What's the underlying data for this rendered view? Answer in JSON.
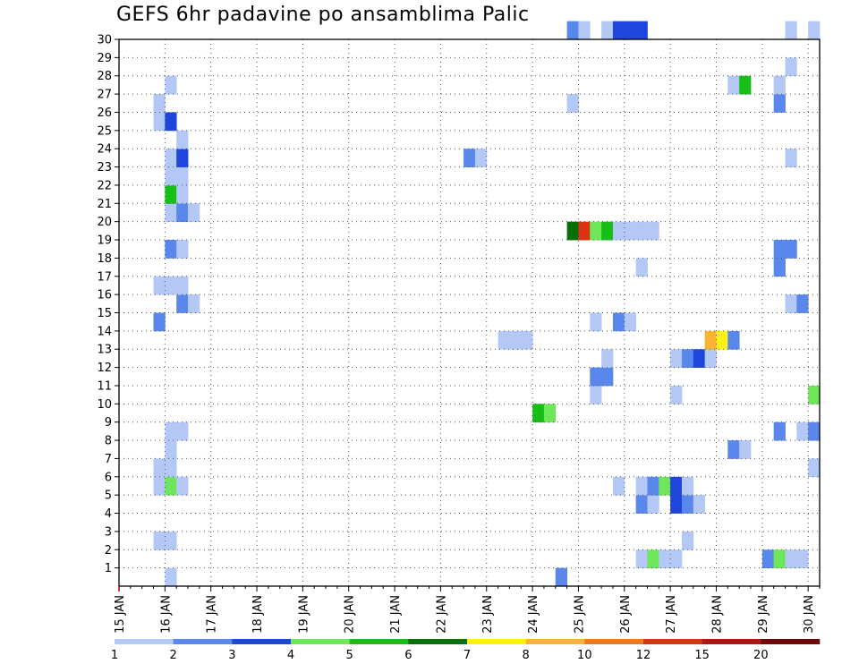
{
  "chart_data": {
    "type": "heatmap",
    "title": "GEFS 6hr padavine po ansamblima Palic",
    "x_tick_labels": [
      "15 JAN",
      "16 JAN",
      "17 JAN",
      "18 JAN",
      "19 JAN",
      "20 JAN",
      "21 JAN",
      "22 JAN",
      "23 JAN",
      "24 JAN",
      "25 JAN",
      "26 JAN",
      "27 JAN",
      "28 JAN",
      "29 JAN",
      "30 JAN"
    ],
    "y_tick_labels": [
      "1",
      "2",
      "3",
      "4",
      "5",
      "6",
      "7",
      "8",
      "9",
      "10",
      "11",
      "12",
      "13",
      "14",
      "15",
      "16",
      "17",
      "18",
      "19",
      "20",
      "21",
      "22",
      "23",
      "24",
      "25",
      "26",
      "27",
      "28",
      "29",
      "30"
    ],
    "x_range_steps": [
      0,
      61
    ],
    "y_range_members": [
      0,
      30
    ],
    "grid": true,
    "colorbar": {
      "labels": [
        "1",
        "2",
        "3",
        "4",
        "5",
        "6",
        "7",
        "8",
        "10",
        "12",
        "15",
        "20"
      ],
      "colors": [
        "#b4c8f5",
        "#5a87eb",
        "#1e46dc",
        "#6ee65a",
        "#16be16",
        "#0a6e0a",
        "#fff014",
        "#fab432",
        "#fa7814",
        "#dc3214",
        "#b41414",
        "#6e0a0a"
      ]
    },
    "level_colors": {
      "1": "#b4c8f5",
      "2": "#5a87eb",
      "3": "#1e46dc",
      "4": "#6ee65a",
      "5": "#16be16",
      "6": "#0a6e0a",
      "7": "#fff014",
      "8": "#fab432",
      "9": "#fa7814",
      "10": "#dc3214"
    },
    "cells": [
      [
        4,
        0,
        1
      ],
      [
        38,
        0,
        2
      ],
      [
        45,
        1,
        1
      ],
      [
        46,
        1,
        4
      ],
      [
        47,
        1,
        1
      ],
      [
        48,
        1,
        1
      ],
      [
        56,
        1,
        2
      ],
      [
        57,
        1,
        4
      ],
      [
        58,
        1,
        1
      ],
      [
        59,
        1,
        1
      ],
      [
        3,
        2,
        1
      ],
      [
        4,
        2,
        1
      ],
      [
        49,
        2,
        1
      ],
      [
        45,
        4,
        2
      ],
      [
        46,
        4,
        1
      ],
      [
        48,
        4,
        3
      ],
      [
        49,
        4,
        2
      ],
      [
        50,
        4,
        1
      ],
      [
        3,
        5,
        1
      ],
      [
        4,
        5,
        4
      ],
      [
        5,
        5,
        1
      ],
      [
        43,
        5,
        1
      ],
      [
        45,
        5,
        1
      ],
      [
        46,
        5,
        2
      ],
      [
        47,
        5,
        4
      ],
      [
        48,
        5,
        3
      ],
      [
        49,
        5,
        1
      ],
      [
        3,
        6,
        1
      ],
      [
        4,
        6,
        1
      ],
      [
        60,
        6,
        1
      ],
      [
        4,
        7,
        1
      ],
      [
        53,
        7,
        2
      ],
      [
        54,
        7,
        1
      ],
      [
        4,
        8,
        1
      ],
      [
        5,
        8,
        1
      ],
      [
        57,
        8,
        2
      ],
      [
        59,
        8,
        1
      ],
      [
        60,
        8,
        2
      ],
      [
        36,
        9,
        5
      ],
      [
        37,
        9,
        4
      ],
      [
        41,
        10,
        1
      ],
      [
        48,
        10,
        1
      ],
      [
        60,
        10,
        4
      ],
      [
        41,
        11,
        2
      ],
      [
        42,
        11,
        2
      ],
      [
        42,
        12,
        1
      ],
      [
        48,
        12,
        1
      ],
      [
        49,
        12,
        2
      ],
      [
        50,
        12,
        3
      ],
      [
        51,
        12,
        1
      ],
      [
        33,
        13,
        1
      ],
      [
        34,
        13,
        1
      ],
      [
        35,
        13,
        1
      ],
      [
        51,
        13,
        8
      ],
      [
        52,
        13,
        7
      ],
      [
        53,
        13,
        2
      ],
      [
        3,
        14,
        2
      ],
      [
        41,
        14,
        1
      ],
      [
        43,
        14,
        2
      ],
      [
        44,
        14,
        1
      ],
      [
        5,
        15,
        2
      ],
      [
        6,
        15,
        1
      ],
      [
        58,
        15,
        1
      ],
      [
        59,
        15,
        2
      ],
      [
        3,
        16,
        1
      ],
      [
        4,
        16,
        1
      ],
      [
        5,
        16,
        1
      ],
      [
        45,
        17,
        1
      ],
      [
        57,
        17,
        2
      ],
      [
        4,
        18,
        2
      ],
      [
        5,
        18,
        1
      ],
      [
        57,
        18,
        2
      ],
      [
        58,
        18,
        2
      ],
      [
        39,
        19,
        6
      ],
      [
        40,
        19,
        10
      ],
      [
        41,
        19,
        4
      ],
      [
        42,
        19,
        5
      ],
      [
        43,
        19,
        1
      ],
      [
        44,
        19,
        1
      ],
      [
        45,
        19,
        1
      ],
      [
        46,
        19,
        1
      ],
      [
        4,
        20,
        1
      ],
      [
        5,
        20,
        2
      ],
      [
        6,
        20,
        1
      ],
      [
        4,
        21,
        5
      ],
      [
        5,
        21,
        1
      ],
      [
        4,
        22,
        1
      ],
      [
        5,
        22,
        1
      ],
      [
        4,
        23,
        1
      ],
      [
        5,
        23,
        3
      ],
      [
        30,
        23,
        2
      ],
      [
        31,
        23,
        1
      ],
      [
        58,
        23,
        1
      ],
      [
        5,
        24,
        1
      ],
      [
        3,
        25,
        1
      ],
      [
        4,
        25,
        3
      ],
      [
        3,
        26,
        1
      ],
      [
        39,
        26,
        1
      ],
      [
        57,
        26,
        2
      ],
      [
        4,
        27,
        1
      ],
      [
        53,
        27,
        1
      ],
      [
        54,
        27,
        5
      ],
      [
        57,
        27,
        1
      ],
      [
        58,
        28,
        1
      ],
      [
        39,
        30,
        2
      ],
      [
        40,
        30,
        1
      ],
      [
        42,
        30,
        1
      ],
      [
        43,
        30,
        3
      ],
      [
        44,
        30,
        3
      ],
      [
        45,
        30,
        3
      ],
      [
        58,
        30,
        1
      ],
      [
        60,
        30,
        1
      ]
    ]
  }
}
